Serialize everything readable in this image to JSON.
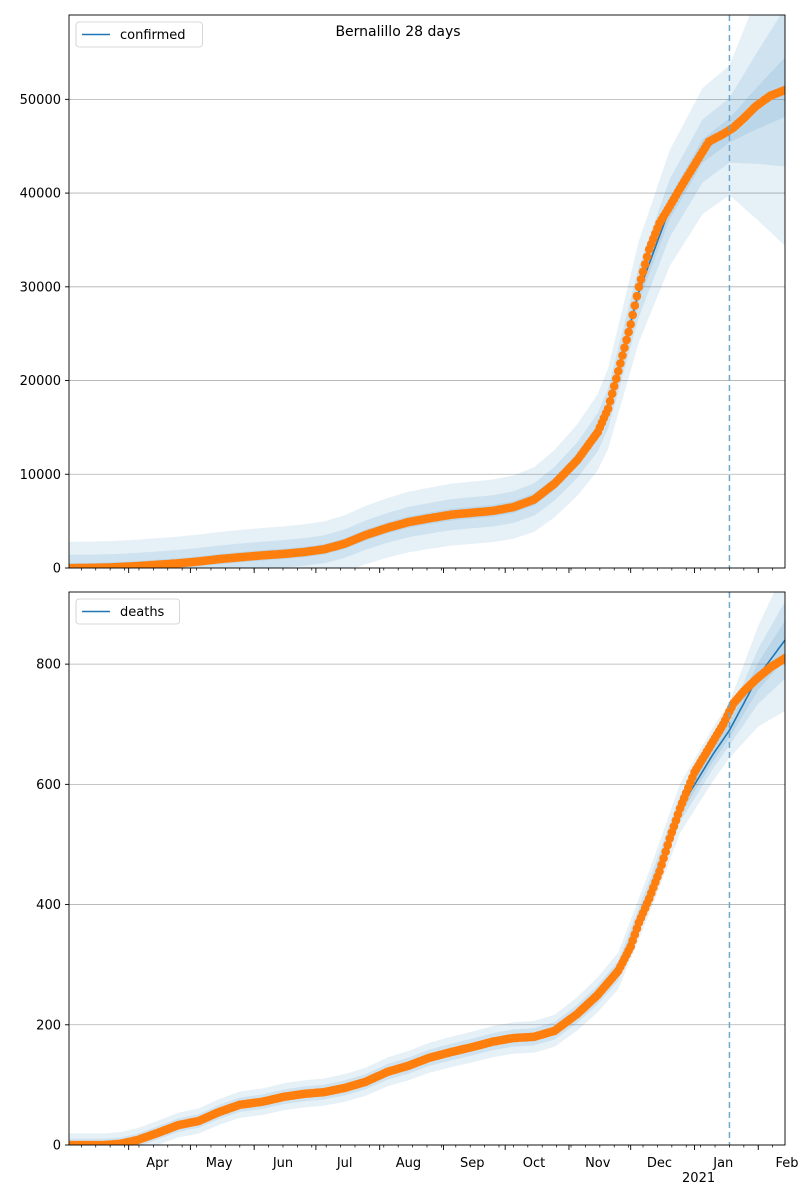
{
  "figure": {
    "title": "Bernalillo 28 days"
  },
  "chart_data": [
    {
      "type": "line",
      "legend": "confirmed",
      "legend_placement": "top-left",
      "grid": "y",
      "ylim": [
        0,
        59000
      ],
      "yticks": [
        0,
        10000,
        20000,
        30000,
        40000,
        50000
      ],
      "ytick_labels": [
        "0",
        "10000",
        "20000",
        "30000",
        "40000",
        "50000"
      ],
      "xlim": [
        "2020-03-03",
        "2021-02-14"
      ],
      "forecast_start": "2021-01-18",
      "observed": [
        [
          "2020-03-03",
          0
        ],
        [
          "2020-03-15",
          20
        ],
        [
          "2020-03-25",
          80
        ],
        [
          "2020-04-05",
          200
        ],
        [
          "2020-04-15",
          350
        ],
        [
          "2020-04-25",
          500
        ],
        [
          "2020-05-05",
          700
        ],
        [
          "2020-05-15",
          950
        ],
        [
          "2020-05-25",
          1150
        ],
        [
          "2020-06-05",
          1350
        ],
        [
          "2020-06-15",
          1500
        ],
        [
          "2020-06-25",
          1700
        ],
        [
          "2020-07-05",
          2000
        ],
        [
          "2020-07-15",
          2600
        ],
        [
          "2020-07-25",
          3500
        ],
        [
          "2020-08-05",
          4300
        ],
        [
          "2020-08-15",
          4900
        ],
        [
          "2020-08-25",
          5300
        ],
        [
          "2020-09-05",
          5700
        ],
        [
          "2020-09-15",
          5900
        ],
        [
          "2020-09-25",
          6100
        ],
        [
          "2020-10-05",
          6500
        ],
        [
          "2020-10-15",
          7300
        ],
        [
          "2020-10-25",
          9000
        ],
        [
          "2020-11-05",
          11500
        ],
        [
          "2020-11-15",
          14500
        ],
        [
          "2020-11-20",
          17000
        ],
        [
          "2020-11-25",
          21000
        ],
        [
          "2020-12-01",
          26000
        ],
        [
          "2020-12-05",
          30000
        ],
        [
          "2020-12-10",
          34000
        ],
        [
          "2020-12-15",
          36800
        ],
        [
          "2020-12-20",
          38600
        ],
        [
          "2020-12-25",
          40500
        ],
        [
          "2021-01-01",
          43000
        ],
        [
          "2021-01-08",
          45500
        ],
        [
          "2021-01-15",
          46300
        ],
        [
          "2021-01-20",
          47000
        ],
        [
          "2021-01-25",
          48000
        ],
        [
          "2021-01-31",
          49300
        ],
        [
          "2021-02-07",
          50400
        ],
        [
          "2021-02-14",
          51000
        ]
      ],
      "fit_extension": [
        [
          "2020-11-20",
          17000
        ],
        [
          "2020-12-05",
          29500
        ],
        [
          "2020-12-20",
          38400
        ],
        [
          "2021-01-05",
          44500
        ],
        [
          "2021-01-18",
          46700
        ],
        [
          "2021-01-31",
          49000
        ],
        [
          "2021-02-14",
          51300
        ]
      ],
      "band_half_widths": [
        1500,
        4000,
        8000
      ],
      "band_steps": [
        {
          "from": "2020-03-03",
          "to": "2020-07-01",
          "frac": 0.05
        },
        {
          "from": "2020-10-01",
          "to": "2021-01-18",
          "frac": 0.08
        },
        {
          "from": "2021-01-18",
          "to": "2021-02-14",
          "frac": 0.1
        }
      ]
    },
    {
      "type": "line",
      "legend": "deaths",
      "legend_placement": "top-left",
      "grid": "y",
      "ylim": [
        0,
        920
      ],
      "yticks": [
        0,
        200,
        400,
        600,
        800
      ],
      "ytick_labels": [
        "0",
        "200",
        "400",
        "600",
        "800"
      ],
      "xlim": [
        "2020-03-03",
        "2021-02-14"
      ],
      "xtick_labels": [
        "Apr",
        "May",
        "Jun",
        "Jul",
        "Aug",
        "Sep",
        "Oct",
        "Nov",
        "Dec",
        "Jan",
        "Feb"
      ],
      "xtick_dates": [
        "2020-04-01",
        "2020-05-01",
        "2020-06-01",
        "2020-07-01",
        "2020-08-01",
        "2020-09-01",
        "2020-10-01",
        "2020-11-01",
        "2020-12-01",
        "2021-01-01",
        "2021-02-01"
      ],
      "year_label": "2021",
      "forecast_start": "2021-01-18",
      "observed": [
        [
          "2020-03-03",
          0
        ],
        [
          "2020-03-20",
          0
        ],
        [
          "2020-03-28",
          2
        ],
        [
          "2020-04-05",
          8
        ],
        [
          "2020-04-15",
          20
        ],
        [
          "2020-04-25",
          33
        ],
        [
          "2020-05-05",
          40
        ],
        [
          "2020-05-15",
          55
        ],
        [
          "2020-05-25",
          67
        ],
        [
          "2020-06-05",
          72
        ],
        [
          "2020-06-15",
          80
        ],
        [
          "2020-06-25",
          85
        ],
        [
          "2020-07-05",
          88
        ],
        [
          "2020-07-15",
          95
        ],
        [
          "2020-07-25",
          105
        ],
        [
          "2020-08-05",
          122
        ],
        [
          "2020-08-15",
          132
        ],
        [
          "2020-08-25",
          145
        ],
        [
          "2020-09-05",
          155
        ],
        [
          "2020-09-15",
          163
        ],
        [
          "2020-09-25",
          172
        ],
        [
          "2020-10-05",
          178
        ],
        [
          "2020-10-15",
          180
        ],
        [
          "2020-10-25",
          190
        ],
        [
          "2020-11-05",
          218
        ],
        [
          "2020-11-15",
          250
        ],
        [
          "2020-11-25",
          290
        ],
        [
          "2020-12-01",
          330
        ],
        [
          "2020-12-05",
          370
        ],
        [
          "2020-12-10",
          410
        ],
        [
          "2020-12-15",
          455
        ],
        [
          "2020-12-20",
          510
        ],
        [
          "2020-12-25",
          560
        ],
        [
          "2021-01-01",
          620
        ],
        [
          "2021-01-08",
          660
        ],
        [
          "2021-01-15",
          700
        ],
        [
          "2021-01-20",
          735
        ],
        [
          "2021-01-25",
          755
        ],
        [
          "2021-01-31",
          775
        ],
        [
          "2021-02-07",
          795
        ],
        [
          "2021-02-14",
          810
        ]
      ],
      "fit_extension": [
        [
          "2020-11-25",
          290
        ],
        [
          "2020-12-10",
          420
        ],
        [
          "2020-12-25",
          560
        ],
        [
          "2021-01-10",
          650
        ],
        [
          "2021-01-18",
          690
        ],
        [
          "2021-02-01",
          780
        ],
        [
          "2021-02-14",
          840
        ]
      ],
      "band_half_widths": [
        15,
        30,
        55
      ],
      "band_steps": [
        {
          "from": "2020-03-03",
          "to": "2020-06-01",
          "frac": 0.08
        },
        {
          "from": "2020-11-01",
          "to": "2021-01-18",
          "frac": 0.1
        },
        {
          "from": "2021-01-18",
          "to": "2021-02-14",
          "frac": 0.12
        }
      ]
    }
  ],
  "colors": {
    "observed": "#ff7f0e",
    "fit_line": "#1f77b4",
    "band": "#1f77b4",
    "forecast_line": "#6fa8cf",
    "grid": "#b0b0b0"
  }
}
